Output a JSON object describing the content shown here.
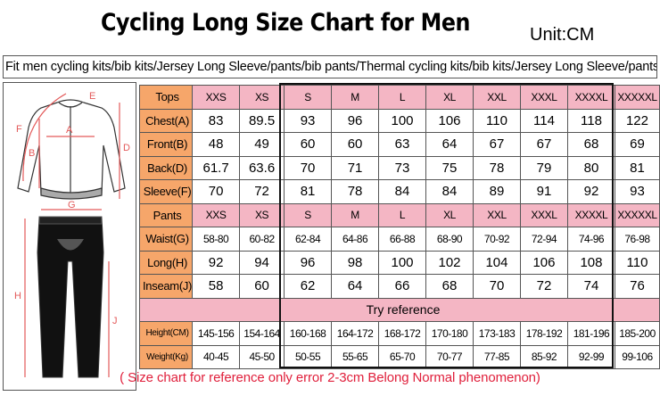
{
  "title": "Cycling Long Size Chart for Men",
  "unit": "Unit:CM",
  "subtitle": "Fit men cycling kits/bib kits/Jersey Long Sleeve/pants/bib pants/Thermal cycling kits/bib kits/Jersey Long Sleeve/pants/bib pants",
  "figure_labels": [
    "F",
    "A",
    "E",
    "B",
    "D",
    "G",
    "H",
    "J"
  ],
  "tops": {
    "header": "Tops",
    "sizes": [
      "XXS",
      "XS",
      "S",
      "M",
      "L",
      "XL",
      "XXL",
      "XXXL",
      "XXXXL",
      "XXXXXL"
    ],
    "rows": [
      {
        "label": "Chest(A)",
        "values": [
          "83",
          "89.5",
          "93",
          "96",
          "100",
          "106",
          "110",
          "114",
          "118",
          "122"
        ]
      },
      {
        "label": "Front(B)",
        "values": [
          "48",
          "49",
          "60",
          "60",
          "63",
          "64",
          "67",
          "67",
          "68",
          "69"
        ]
      },
      {
        "label": "Back(D)",
        "values": [
          "61.7",
          "63.6",
          "70",
          "71",
          "73",
          "75",
          "78",
          "79",
          "80",
          "81"
        ]
      },
      {
        "label": "Sleeve(F)",
        "values": [
          "70",
          "72",
          "81",
          "78",
          "84",
          "84",
          "89",
          "91",
          "92",
          "93"
        ]
      }
    ]
  },
  "pants": {
    "header": "Pants",
    "sizes": [
      "XXS",
      "XS",
      "S",
      "M",
      "L",
      "XL",
      "XXL",
      "XXXL",
      "XXXXL",
      "XXXXXL"
    ],
    "rows": [
      {
        "label": "Waist(G)",
        "small": true,
        "values": [
          "58-80",
          "60-82",
          "62-84",
          "64-86",
          "66-88",
          "68-90",
          "70-92",
          "72-94",
          "74-96",
          "76-98"
        ]
      },
      {
        "label": "Long(H)",
        "small": false,
        "values": [
          "92",
          "94",
          "96",
          "98",
          "100",
          "102",
          "104",
          "106",
          "108",
          "110"
        ]
      },
      {
        "label": "Inseam(J)",
        "small": false,
        "values": [
          "58",
          "60",
          "62",
          "64",
          "66",
          "68",
          "70",
          "72",
          "74",
          "76"
        ]
      }
    ]
  },
  "reference": {
    "header": "Try reference",
    "rows": [
      {
        "label": "Height(CM)",
        "values": [
          "145-156",
          "154-164",
          "160-168",
          "164-172",
          "168-172",
          "170-180",
          "173-183",
          "178-192",
          "181-196",
          "185-200"
        ]
      },
      {
        "label": "Weight(Kg)",
        "values": [
          "40-45",
          "45-50",
          "50-55",
          "55-65",
          "65-70",
          "70-77",
          "77-85",
          "85-92",
          "92-99",
          "99-106"
        ]
      }
    ]
  },
  "note": "( Size chart for reference only  error 2-3cm  Belong Normal phenomenon)",
  "colors": {
    "label_orange": "#f6a66a",
    "size_pink": "#f4b6c4",
    "note_red": "#e0203c",
    "dim_red": "#e35a5a"
  }
}
